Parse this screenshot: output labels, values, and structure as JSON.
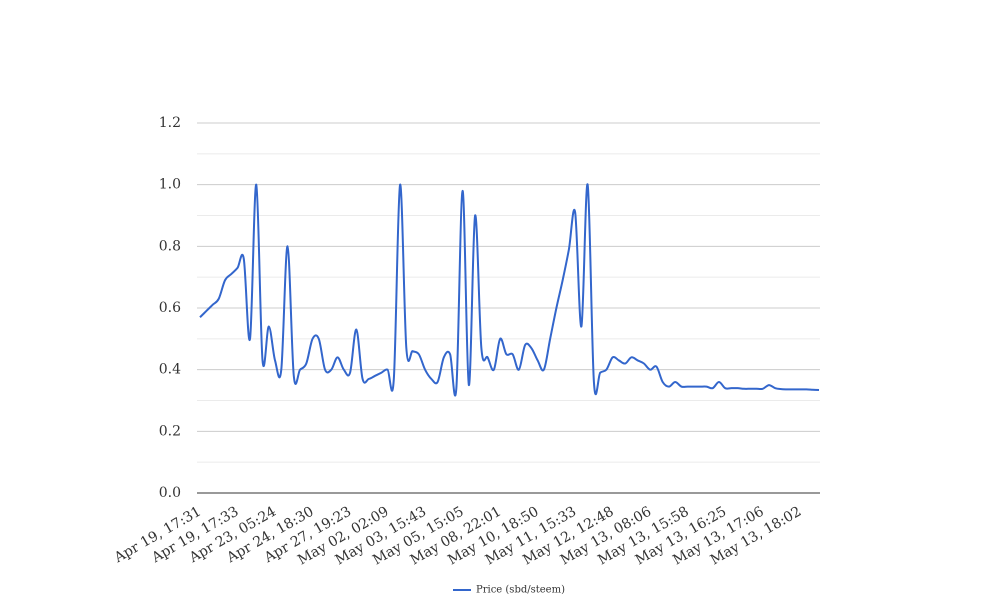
{
  "chart_data": {
    "type": "line",
    "categories": [
      "Apr 19, 17:31",
      null,
      null,
      null,
      null,
      null,
      "Apr 19, 17:33",
      null,
      null,
      null,
      null,
      null,
      "Apr 23, 05:24",
      null,
      null,
      null,
      null,
      null,
      "Apr 24, 18:30",
      null,
      null,
      null,
      null,
      null,
      "Apr 27, 19:23",
      null,
      null,
      null,
      null,
      null,
      "May 02, 02:09",
      null,
      null,
      null,
      null,
      null,
      "May 03, 15:43",
      null,
      null,
      null,
      null,
      null,
      "May 05, 15:05",
      null,
      null,
      null,
      null,
      null,
      "May 08, 22:01",
      null,
      null,
      null,
      null,
      null,
      "May 10, 18:50",
      null,
      null,
      null,
      null,
      null,
      "May 11, 15:33",
      null,
      null,
      null,
      null,
      null,
      "May 12, 12:48",
      null,
      null,
      null,
      null,
      null,
      "May 13, 08:06",
      null,
      null,
      null,
      null,
      null,
      "May 13, 15:58",
      null,
      null,
      null,
      null,
      null,
      "May 13, 16:25",
      null,
      null,
      null,
      null,
      null,
      "May 13, 17:06",
      null,
      null,
      null,
      null,
      null,
      "May 13, 18:02",
      null,
      null,
      null
    ],
    "series": [
      {
        "name": "Price (sbd/steem)",
        "color": "#3366cc",
        "values": [
          0.57,
          0.59,
          0.61,
          0.63,
          0.69,
          0.71,
          0.73,
          0.76,
          0.5,
          1.0,
          0.43,
          0.54,
          0.43,
          0.4,
          0.8,
          0.38,
          0.4,
          0.42,
          0.5,
          0.5,
          0.4,
          0.4,
          0.44,
          0.4,
          0.39,
          0.53,
          0.37,
          0.37,
          0.38,
          0.39,
          0.4,
          0.37,
          1.0,
          0.47,
          0.46,
          0.45,
          0.4,
          0.37,
          0.36,
          0.44,
          0.45,
          0.34,
          0.98,
          0.35,
          0.9,
          0.47,
          0.44,
          0.4,
          0.5,
          0.45,
          0.45,
          0.4,
          0.48,
          0.47,
          0.43,
          0.4,
          0.5,
          0.6,
          0.69,
          0.79,
          0.91,
          0.54,
          1.0,
          0.36,
          0.39,
          0.4,
          0.44,
          0.43,
          0.42,
          0.44,
          0.43,
          0.42,
          0.4,
          0.41,
          0.36,
          0.345,
          0.36,
          0.345,
          0.345,
          0.345,
          0.345,
          0.345,
          0.34,
          0.36,
          0.34,
          0.34,
          0.34,
          0.338,
          0.338,
          0.338,
          0.338,
          0.35,
          0.34,
          0.337,
          0.336,
          0.336,
          0.336,
          0.336,
          0.335,
          0.334
        ]
      }
    ],
    "ylim": [
      0,
      1.2
    ],
    "yticks": [
      {
        "value": 0,
        "label": "0.0"
      },
      0.2,
      0.4,
      0.6,
      0.8,
      {
        "value": 1,
        "label": "1.0"
      },
      1.2
    ],
    "minor_yticks": [
      0.1,
      0.3,
      0.5,
      0.7,
      0.9,
      1.1
    ],
    "grid": true,
    "legend": "bottom"
  }
}
